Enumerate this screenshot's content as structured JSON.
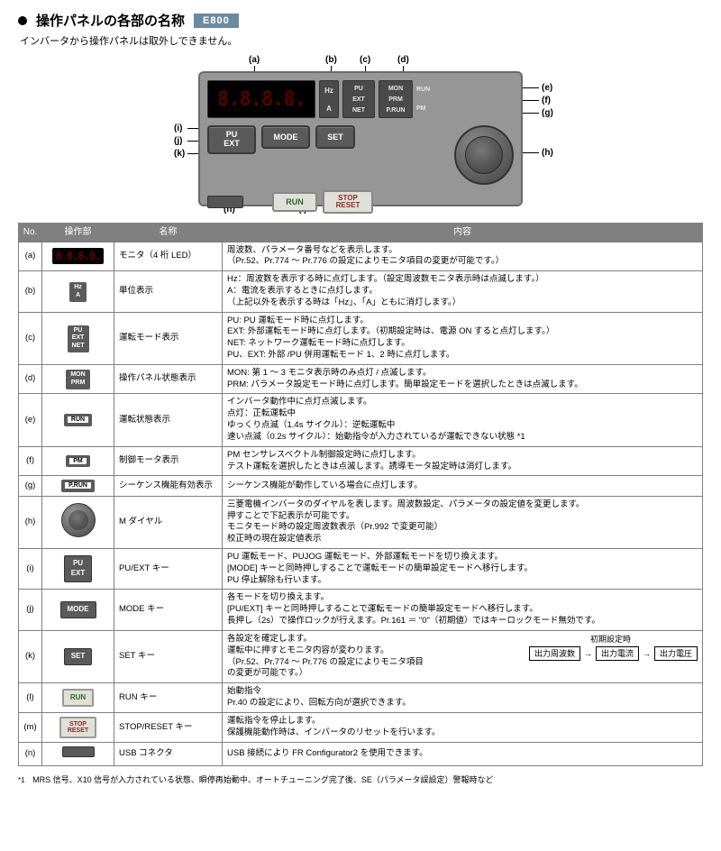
{
  "header": {
    "title": "操作パネルの各部の名称",
    "badge": "E800",
    "subtitle": "インバータから操作パネルは取外しできません。"
  },
  "panel": {
    "seg_display": "8.8.8.8.",
    "unit_labels": [
      "Hz",
      "A"
    ],
    "mode_labels": [
      "PU",
      "EXT",
      "NET"
    ],
    "stat_labels": [
      "MON",
      "PRM",
      "P.RUN"
    ],
    "run_labels": [
      "RUN",
      "PM"
    ],
    "btn_puext_top": "PU",
    "btn_puext_bot": "EXT",
    "btn_mode": "MODE",
    "btn_set": "SET",
    "btn_run": "RUN",
    "btn_stop": "STOP\nRESET"
  },
  "callouts": {
    "a": "(a)",
    "b": "(b)",
    "c": "(c)",
    "d": "(d)",
    "e": "(e)",
    "f": "(f)",
    "g": "(g)",
    "h": "(h)",
    "i": "(i)",
    "j": "(j)",
    "k": "(k)",
    "l": "(l)",
    "m": "(m)",
    "n": "(n)"
  },
  "table": {
    "headers": [
      "No.",
      "操作部",
      "名称",
      "内容"
    ],
    "rows": [
      {
        "no": "(a)",
        "name": "モニタ（4 桁 LED）",
        "desc": "周波数、パラメータ番号などを表示します。\n（Pr.52、Pr.774 ～ Pr.776 の設定によりモニタ項目の変更が可能です。）"
      },
      {
        "no": "(b)",
        "name": "単位表示",
        "desc": "Hz：周波数を表示する時に点灯します。（設定周波数モニタ表示時は点滅します。）\nA：電流を表示するときに点灯します。\n（上記以外を表示する時は「Hz」、「A」ともに消灯します。）"
      },
      {
        "no": "(c)",
        "name": "運転モード表示",
        "desc": "PU: PU 運転モード時に点灯します。\nEXT: 外部運転モード時に点灯します。（初期設定時は、電源 ON すると点灯します。）\nNET: ネットワーク運転モード時に点灯します。\nPU、EXT: 外部 /PU 併用運転モード 1、2 時に点灯します。"
      },
      {
        "no": "(d)",
        "name": "操作パネル状態表示",
        "desc": "MON: 第 1 ～ 3 モニタ表示時のみ点灯 / 点滅します。\nPRM: パラメータ設定モード時に点灯します。簡単設定モードを選択したときは点滅します。"
      },
      {
        "no": "(e)",
        "name": "運転状態表示",
        "desc": "インバータ動作中に点灯点滅します。\n点灯：正転運転中\nゆっくり点滅（1.4s サイクル）：逆転運転中\n速い点滅（0.2s サイクル）：始動指令が入力されているが運転できない状態 *1"
      },
      {
        "no": "(f)",
        "name": "制御モータ表示",
        "desc": "PM センサレスベクトル制御設定時に点灯します。\nテスト運転を選択したときは点滅します。誘導モータ設定時は消灯します。"
      },
      {
        "no": "(g)",
        "name": "シーケンス機能有効表示",
        "desc": "シーケンス機能が動作している場合に点灯します。"
      },
      {
        "no": "(h)",
        "name": "M ダイヤル",
        "desc": "三菱電機インバータのダイヤルを表します。周波数設定、パラメータの設定値を変更します。\n押すことで下記表示が可能です。\nモニタモード時の設定周波数表示（Pr.992 で変更可能）\n校正時の現在設定値表示"
      },
      {
        "no": "(i)",
        "name": "PU/EXT キー",
        "desc": "PU 運転モード、PUJOG 運転モード、外部運転モードを切り換えます。\n[MODE] キーと同時押しすることで運転モードの簡単設定モードへ移行します。\nPU 停止解除も行います。"
      },
      {
        "no": "(j)",
        "name": "MODE キー",
        "desc": "各モードを切り換えます。\n[PU/EXT] キーと同時押しすることで運転モードの簡単設定モードへ移行します。\n長押し（2s）で操作ロックが行えます。Pr.161 ＝ \"0\"（初期値）ではキーロックモード無効です。"
      },
      {
        "no": "(k)",
        "name": "SET キー",
        "desc_pre": "各設定を確定します。\n運転中に押すとモニタ内容が変わります。\n（Pr.52、Pr.774 ～ Pr.776 の設定によりモニタ項目\nの変更が可能です。）",
        "flow_label": "初期設定時",
        "flow_items": [
          "出力周波数",
          "出力電流",
          "出力電圧"
        ]
      },
      {
        "no": "(l)",
        "name": "RUN キー",
        "desc": "始動指令\nPr.40 の設定により、回転方向が選択できます。"
      },
      {
        "no": "(m)",
        "name": "STOP/RESET キー",
        "desc": "運転指令を停止します。\n保護機能動作時は、インバータのリセットを行います。"
      },
      {
        "no": "(n)",
        "name": "USB コネクタ",
        "desc": "USB 接続により FR Configurator2 を使用できます。"
      }
    ]
  },
  "footnote": {
    "mark": "*1",
    "text": "MRS 信号、X10 信号が入力されている状態、瞬停再始動中、オートチューニング完了後、SE（パラメータ誤設定）警報時など"
  }
}
